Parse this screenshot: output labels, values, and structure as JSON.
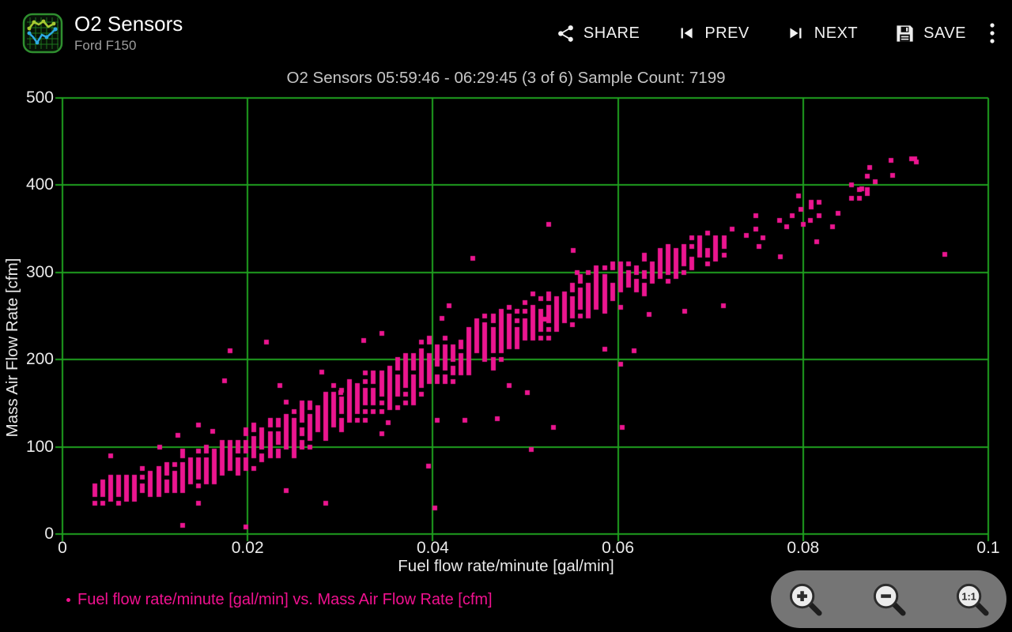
{
  "app": {
    "icon": "line-chart-app-icon",
    "title": "O2 Sensors",
    "subtitle": "Ford F150",
    "actions": [
      {
        "id": "share",
        "label": "SHARE",
        "icon": "share-icon"
      },
      {
        "id": "prev",
        "label": "PREV",
        "icon": "skip-previous-icon"
      },
      {
        "id": "next",
        "label": "NEXT",
        "icon": "skip-next-icon"
      },
      {
        "id": "save",
        "label": "SAVE",
        "icon": "save-icon"
      }
    ],
    "overflow_icon": "more-vert-icon"
  },
  "chart_data": {
    "type": "scatter",
    "title": "O2 Sensors 05:59:46 - 06:29:45 (3 of 6) Sample Count: 7199",
    "time_range": "05:59:46 - 06:29:45",
    "page": "3 of 6",
    "sample_count": 7199,
    "xlabel": "Fuel flow rate/minute [gal/min]",
    "ylabel": "Mass Air Flow Rate [cfm]",
    "series_label": "Fuel flow rate/minute [gal/min] vs. Mass Air Flow Rate [cfm]",
    "xlim": [
      0,
      0.1
    ],
    "ylim": [
      0,
      500
    ],
    "x_ticks": [
      {
        "value": 0,
        "label": "0"
      },
      {
        "value": 0.02,
        "label": "0.02"
      },
      {
        "value": 0.04,
        "label": "0.04"
      },
      {
        "value": 0.06,
        "label": "0.06"
      },
      {
        "value": 0.08,
        "label": "0.08"
      },
      {
        "value": 0.1,
        "label": "0.1"
      }
    ],
    "y_ticks": [
      {
        "value": 0,
        "label": "0"
      },
      {
        "value": 100,
        "label": "100"
      },
      {
        "value": 200,
        "label": "200"
      },
      {
        "value": 300,
        "label": "300"
      },
      {
        "value": 400,
        "label": "400"
      },
      {
        "value": 500,
        "label": "500"
      }
    ],
    "grid": true,
    "grid_color": "#1FA01F",
    "background_color": "#000000",
    "point_color": "#EC1690",
    "legend_color": "#F0118F",
    "legend_position": "bottom-left",
    "generator": {
      "seed": 11,
      "x_start": 0.0035,
      "x_end": 0.0936,
      "x_step": 0.00086,
      "trend_anchors": [
        [
          0.0035,
          45
        ],
        [
          0.01,
          62
        ],
        [
          0.02,
          96
        ],
        [
          0.03,
          142
        ],
        [
          0.04,
          194
        ],
        [
          0.05,
          242
        ],
        [
          0.06,
          288
        ],
        [
          0.07,
          330
        ],
        [
          0.08,
          368
        ],
        [
          0.0936,
          428
        ]
      ],
      "count_anchors": [
        [
          0.0035,
          9
        ],
        [
          0.006,
          15
        ],
        [
          0.012,
          13
        ],
        [
          0.02,
          14
        ],
        [
          0.03,
          17
        ],
        [
          0.04,
          18
        ],
        [
          0.05,
          16
        ],
        [
          0.058,
          14
        ],
        [
          0.065,
          9
        ],
        [
          0.071,
          6
        ],
        [
          0.0936,
          3
        ]
      ],
      "spread_anchors": [
        [
          0.0035,
          10
        ],
        [
          0.01,
          13
        ],
        [
          0.02,
          17
        ],
        [
          0.03,
          20
        ],
        [
          0.04,
          22
        ],
        [
          0.05,
          20
        ],
        [
          0.06,
          17
        ],
        [
          0.07,
          13
        ],
        [
          0.0936,
          10
        ]
      ],
      "sparse_after": 0.072,
      "sparse_keep_probability": 0.4,
      "outlier_probability": 0.012,
      "point_size": 6,
      "y_quantum": 5
    },
    "extra_points": [
      [
        0.0105,
        100
      ],
      [
        0.0125,
        113
      ],
      [
        0.0162,
        118
      ],
      [
        0.0175,
        176
      ],
      [
        0.0181,
        210
      ],
      [
        0.022,
        220
      ],
      [
        0.0235,
        170
      ],
      [
        0.0242,
        151
      ],
      [
        0.028,
        186
      ],
      [
        0.0301,
        162
      ],
      [
        0.0325,
        222
      ],
      [
        0.0345,
        230
      ],
      [
        0.0352,
        128
      ],
      [
        0.0395,
        78
      ],
      [
        0.0402,
        30
      ],
      [
        0.041,
        247
      ],
      [
        0.0418,
        262
      ],
      [
        0.0435,
        130
      ],
      [
        0.0443,
        316
      ],
      [
        0.047,
        132
      ],
      [
        0.0502,
        162
      ],
      [
        0.0506,
        97
      ],
      [
        0.0522,
        246
      ],
      [
        0.053,
        122
      ],
      [
        0.0552,
        325
      ],
      [
        0.0556,
        300
      ],
      [
        0.0586,
        212
      ],
      [
        0.0605,
        122
      ],
      [
        0.0617,
        210
      ],
      [
        0.0634,
        252
      ],
      [
        0.0672,
        255
      ],
      [
        0.0714,
        262
      ],
      [
        0.0739,
        342
      ],
      [
        0.0752,
        330
      ],
      [
        0.0757,
        340
      ],
      [
        0.0775,
        318
      ],
      [
        0.0782,
        352
      ],
      [
        0.0788,
        365
      ],
      [
        0.0795,
        388
      ],
      [
        0.0798,
        372
      ],
      [
        0.0808,
        360
      ],
      [
        0.0815,
        335
      ],
      [
        0.0832,
        352
      ],
      [
        0.0838,
        368
      ],
      [
        0.0863,
        396
      ],
      [
        0.0872,
        420
      ],
      [
        0.0878,
        404
      ],
      [
        0.0895,
        428
      ],
      [
        0.0897,
        411
      ],
      [
        0.0917,
        430
      ],
      [
        0.0922,
        427
      ],
      [
        0.0953,
        321
      ]
    ]
  },
  "zoom_controls": {
    "zoom_in_icon": "zoom-in-icon",
    "zoom_out_icon": "zoom-out-icon",
    "reset_label": "1:1"
  }
}
